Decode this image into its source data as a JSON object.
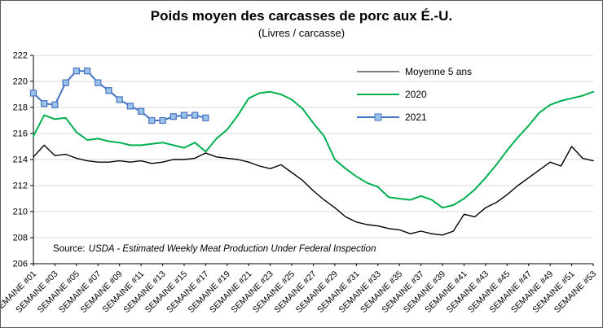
{
  "source": {
    "prefix": "Source:",
    "text": "USDA - Estimated Weekly Meat Production Under Federal Inspection"
  },
  "chart_data": {
    "type": "line",
    "title": "Poids moyen des carcasses de porc aux É.-U.",
    "subtitle": "(Livres / carcasse)",
    "ylim": [
      206,
      222
    ],
    "ytick_step": 2,
    "grid": true,
    "grid_color": "#D9D9D9",
    "axis_color": "#000000",
    "legend_position": "top-right-inside",
    "x_label_every": 2,
    "categories": [
      "SEMAINE #01",
      "SEMAINE #02",
      "SEMAINE #03",
      "SEMAINE #04",
      "SEMAINE #05",
      "SEMAINE #06",
      "SEMAINE #07",
      "SEMAINE #08",
      "SEMAINE #09",
      "SEMAINE #10",
      "SEMAINE #11",
      "SEMAINE #12",
      "SEMAINE #13",
      "SEMAINE #14",
      "SEMAINE #15",
      "SEMAINE #16",
      "SEMAINE #17",
      "SEMAINE #18",
      "SEMAINE #19",
      "SEMAINE #20",
      "SEMAINE #21",
      "SEMAINE #22",
      "SEMAINE #23",
      "SEMAINE #24",
      "SEMAINE #25",
      "SEMAINE #26",
      "SEMAINE #27",
      "SEMAINE #28",
      "SEMAINE #29",
      "SEMAINE #30",
      "SEMAINE #31",
      "SEMAINE #32",
      "SEMAINE #33",
      "SEMAINE #34",
      "SEMAINE #35",
      "SEMAINE #36",
      "SEMAINE #37",
      "SEMAINE #38",
      "SEMAINE #39",
      "SEMAINE #40",
      "SEMAINE #41",
      "SEMAINE #42",
      "SEMAINE #43",
      "SEMAINE #44",
      "SEMAINE #45",
      "SEMAINE #46",
      "SEMAINE #47",
      "SEMAINE #48",
      "SEMAINE #49",
      "SEMAINE #50",
      "SEMAINE #51",
      "SEMAINE #52",
      "SEMAINE #53"
    ],
    "series": [
      {
        "name": "Moyenne 5 ans",
        "color": "#000000",
        "line_width": 1.4,
        "marker": "none",
        "values": [
          214.2,
          215.1,
          214.3,
          214.4,
          214.1,
          213.9,
          213.8,
          213.8,
          213.9,
          213.8,
          213.9,
          213.7,
          213.8,
          214.0,
          214.0,
          214.1,
          214.5,
          214.2,
          214.1,
          214.0,
          213.8,
          213.5,
          213.3,
          213.6,
          213.0,
          212.4,
          211.6,
          210.9,
          210.3,
          209.6,
          209.2,
          209.0,
          208.9,
          208.7,
          208.6,
          208.3,
          208.5,
          208.3,
          208.2,
          208.5,
          209.8,
          209.6,
          210.3,
          210.7,
          211.3,
          212.0,
          212.6,
          213.2,
          213.8,
          213.5,
          215.0,
          214.1,
          213.9
        ]
      },
      {
        "name": "2020",
        "color": "#00B050",
        "line_width": 2,
        "marker": "none",
        "values": [
          215.8,
          217.4,
          217.1,
          217.2,
          216.1,
          215.5,
          215.6,
          215.4,
          215.3,
          215.1,
          215.1,
          215.2,
          215.3,
          215.1,
          214.9,
          215.3,
          214.6,
          215.6,
          216.3,
          217.4,
          218.7,
          219.1,
          219.2,
          219.0,
          218.6,
          217.9,
          216.8,
          215.8,
          214.0,
          213.3,
          212.7,
          212.2,
          211.9,
          211.1,
          211.0,
          210.9,
          211.2,
          210.9,
          210.3,
          210.5,
          211.0,
          211.7,
          212.6,
          213.6,
          214.7,
          215.7,
          216.6,
          217.6,
          218.2,
          218.5,
          218.7,
          218.9,
          219.2
        ]
      },
      {
        "name": "2021",
        "color": "#4472C4",
        "line_width": 2,
        "marker": "square",
        "marker_fill": "#9DC3E6",
        "values": [
          219.1,
          218.3,
          218.2,
          219.9,
          220.8,
          220.8,
          219.9,
          219.3,
          218.6,
          218.1,
          217.7,
          217.0,
          217.0,
          217.3,
          217.4,
          217.4,
          217.2,
          null,
          null,
          null,
          null,
          null,
          null,
          null,
          null,
          null,
          null,
          null,
          null,
          null,
          null,
          null,
          null,
          null,
          null,
          null,
          null,
          null,
          null,
          null,
          null,
          null,
          null,
          null,
          null,
          null,
          null,
          null,
          null,
          null,
          null,
          null,
          null
        ]
      }
    ]
  }
}
